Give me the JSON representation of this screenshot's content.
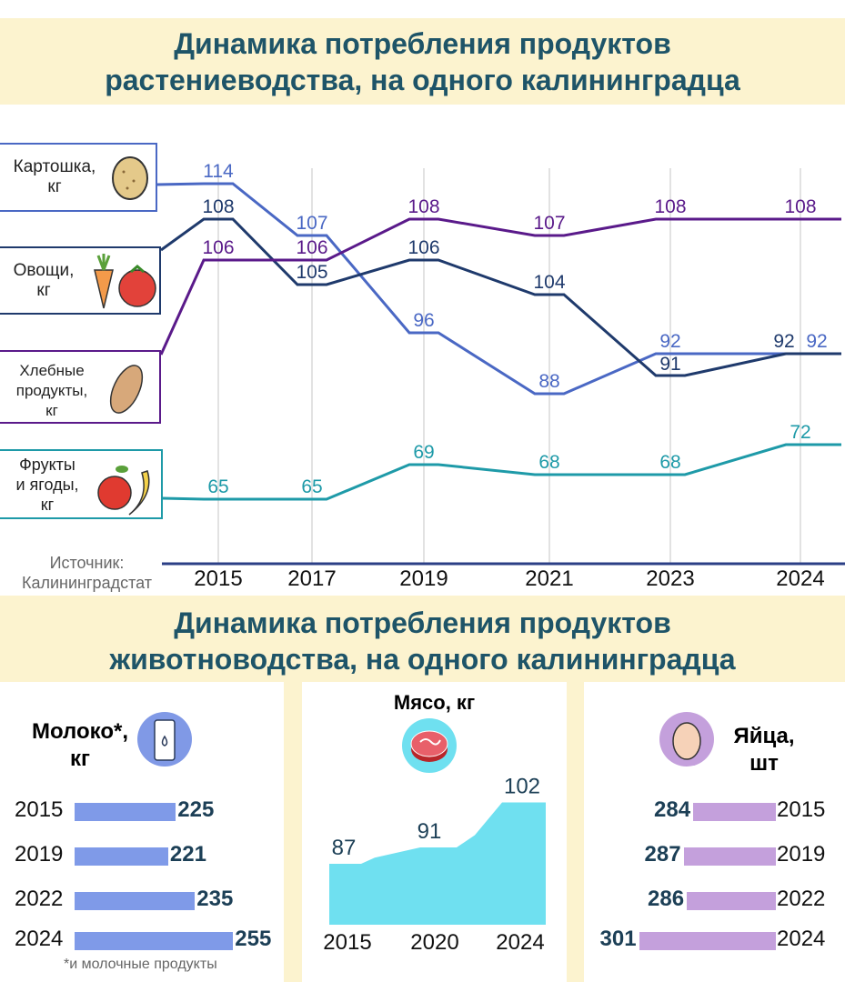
{
  "title_top": [
    "Динамика потребления продуктов",
    "растениеводства, на одного калининградца"
  ],
  "title_bottom": [
    "Динамика потребления продуктов",
    "животноводства, на одного калининградца"
  ],
  "source": [
    "Источник:",
    "Калининградстат"
  ],
  "legend": {
    "potato": [
      "Картошка,",
      "кг"
    ],
    "vegetables": [
      "Овощи,",
      "кг"
    ],
    "bread": [
      "Хлебные",
      "продукты,",
      "кг"
    ],
    "fruit": [
      "Фрукты",
      "и ягоды,",
      "кг"
    ]
  },
  "chart_data": [
    {
      "type": "line",
      "title": "Динамика потребления продуктов растениеводства, на одного калининградца",
      "categories": [
        "2015",
        "2017",
        "2019",
        "2021",
        "2023",
        "2024"
      ],
      "series": [
        {
          "name": "Картошка, кг",
          "key": "potato",
          "color": "#4a68c4",
          "values": [
            114,
            107,
            96,
            88,
            92,
            92
          ]
        },
        {
          "name": "Овощи, кг",
          "key": "vegetables",
          "color": "#1f3a6c",
          "values": [
            108,
            105,
            106,
            104,
            91,
            92
          ]
        },
        {
          "name": "Хлебные продукты, кг",
          "key": "bread",
          "color": "#5a1a8a",
          "values": [
            106,
            106,
            108,
            107,
            108,
            108
          ]
        },
        {
          "name": "Фрукты и ягоды, кг",
          "key": "fruit",
          "color": "#1e9aa8",
          "values": [
            65,
            65,
            69,
            68,
            68,
            72
          ]
        }
      ]
    },
    {
      "type": "bar",
      "title": "Молоко*, кг",
      "footnote": "*и молочные продукты",
      "categories": [
        "2015",
        "2019",
        "2022",
        "2024"
      ],
      "values": [
        225,
        221,
        235,
        255
      ],
      "color": "#7f9ae8"
    },
    {
      "type": "area",
      "title": "Мясо, кг",
      "categories": [
        "2015",
        "2020",
        "2024"
      ],
      "values": [
        87,
        91,
        102
      ],
      "color": "#6fe0f0"
    },
    {
      "type": "bar",
      "title": "Яйца, шт",
      "categories": [
        "2015",
        "2019",
        "2022",
        "2024"
      ],
      "values": [
        284,
        287,
        286,
        301
      ],
      "color": "#c4a0dc"
    }
  ],
  "milk_title": [
    "Молоко*,",
    "кг"
  ],
  "meat_title": "Мясо, кг",
  "eggs_title": [
    "Яйца,",
    "шт"
  ]
}
